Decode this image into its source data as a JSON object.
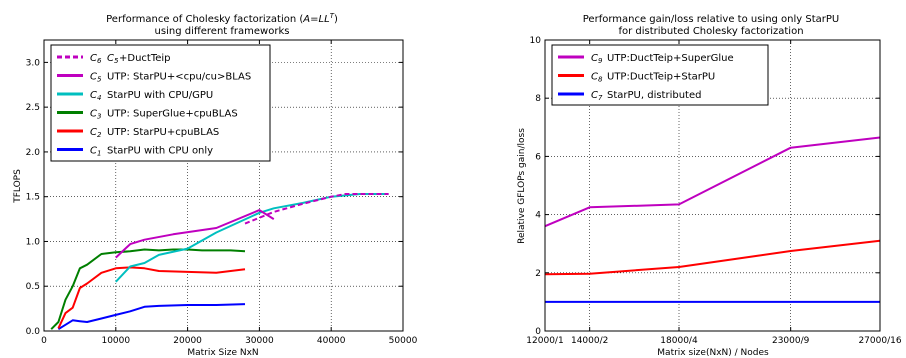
{
  "chart_data": [
    {
      "type": "line",
      "title": "Performance of Cholesky factorization (A=LL^T)",
      "title_parts": {
        "prefix": "Performance of Cholesky factorization (",
        "a": "A",
        "eq": "=",
        "ll": "LL",
        "sup": "T",
        "close": ")"
      },
      "subtitle": "using different frameworks",
      "xlabel": "Matrix Size NxN",
      "ylabel": "TFLOPS",
      "xlim": [
        0,
        50000
      ],
      "ylim": [
        0,
        3.25
      ],
      "xticks": [
        0,
        10000,
        20000,
        30000,
        40000,
        50000
      ],
      "xtick_labels": [
        "0",
        "10000",
        "20000",
        "30000",
        "40000",
        "50000"
      ],
      "yticks": [
        0.0,
        0.5,
        1.0,
        1.5,
        2.0,
        2.5,
        3.0
      ],
      "ytick_labels": [
        "0.0",
        "0.5",
        "1.0",
        "1.5",
        "2.0",
        "2.5",
        "3.0"
      ],
      "legend_position": "upper-left",
      "series": [
        {
          "sym": "C",
          "sub": "6",
          "name": "C5+DuctTeip",
          "name_parts": {
            "sym": "C",
            "sub": "5",
            "text": "+DuctTeip"
          },
          "color": "#bf00bf",
          "dashed": true,
          "x": [
            28000,
            32000,
            36000,
            40000,
            42000,
            44000,
            48000
          ],
          "y": [
            1.2,
            1.33,
            1.42,
            1.5,
            1.53,
            1.53,
            1.53
          ]
        },
        {
          "sym": "C",
          "sub": "5",
          "name": "UTP: StarPU+<cpu/cu>BLAS",
          "color": "#bf00bf",
          "dashed": false,
          "x": [
            10000,
            12000,
            14000,
            18000,
            24000,
            30000,
            32000
          ],
          "y": [
            0.82,
            0.97,
            1.02,
            1.08,
            1.15,
            1.35,
            1.25
          ]
        },
        {
          "sym": "C",
          "sub": "4",
          "name": "StarPU with CPU/GPU",
          "color": "#00bfbf",
          "dashed": false,
          "x": [
            10000,
            12000,
            14000,
            16000,
            20000,
            24000,
            30000,
            32000,
            36000,
            40000,
            44000,
            48000
          ],
          "y": [
            0.55,
            0.72,
            0.76,
            0.85,
            0.92,
            1.1,
            1.32,
            1.37,
            1.43,
            1.5,
            1.53,
            1.53
          ]
        },
        {
          "sym": "C",
          "sub": "3",
          "name": "UTP: SuperGlue+cpuBLAS",
          "color": "#007f00",
          "dashed": false,
          "x": [
            1000,
            2000,
            3000,
            4000,
            5000,
            6000,
            8000,
            10000,
            12000,
            14000,
            16000,
            18000,
            20000,
            22000,
            24000,
            26000,
            28000
          ],
          "y": [
            0.02,
            0.1,
            0.35,
            0.5,
            0.7,
            0.74,
            0.86,
            0.88,
            0.89,
            0.91,
            0.9,
            0.91,
            0.91,
            0.9,
            0.9,
            0.9,
            0.89
          ]
        },
        {
          "sym": "C",
          "sub": "2",
          "name": "UTP: StarPU+cpuBLAS",
          "color": "#ff0000",
          "dashed": false,
          "x": [
            2000,
            3000,
            4000,
            5000,
            6000,
            8000,
            10000,
            12000,
            14000,
            16000,
            20000,
            24000,
            28000
          ],
          "y": [
            0.03,
            0.2,
            0.26,
            0.48,
            0.53,
            0.65,
            0.7,
            0.71,
            0.7,
            0.67,
            0.66,
            0.65,
            0.69
          ]
        },
        {
          "sym": "C",
          "sub": "1",
          "name": "StarPU with CPU only",
          "color": "#0000ff",
          "dashed": false,
          "x": [
            2000,
            4000,
            5000,
            6000,
            8000,
            10000,
            12000,
            14000,
            16000,
            20000,
            24000,
            28000
          ],
          "y": [
            0.02,
            0.12,
            0.11,
            0.1,
            0.14,
            0.18,
            0.22,
            0.27,
            0.28,
            0.29,
            0.29,
            0.3
          ]
        }
      ]
    },
    {
      "type": "line",
      "title": "Performance gain/loss relative to using only StarPU",
      "subtitle": "for distributed Cholesky factorization",
      "xlabel": "Matrix size(NxN) / Nodes",
      "ylabel": "Relative GFLOPs gain/loss",
      "categories": [
        "12000/1",
        "14000/2",
        "18000/4",
        "23000/9",
        "27000/16"
      ],
      "x": [
        12000,
        14000,
        18000,
        23000,
        27000
      ],
      "xlim": [
        12000,
        27000
      ],
      "ylim": [
        0,
        10
      ],
      "yticks": [
        0,
        2,
        4,
        6,
        8,
        10
      ],
      "ytick_labels": [
        "0",
        "2",
        "4",
        "6",
        "8",
        "10"
      ],
      "legend_position": "upper-left",
      "series": [
        {
          "sym": "C",
          "sub": "9",
          "name": "UTP:DuctTeip+SuperGlue",
          "color": "#bf00bf",
          "values": [
            3.6,
            4.25,
            4.35,
            6.3,
            6.65
          ]
        },
        {
          "sym": "C",
          "sub": "8",
          "name": "UTP:DuctTeip+StarPU",
          "color": "#ff0000",
          "values": [
            1.95,
            1.97,
            2.2,
            2.75,
            3.1
          ]
        },
        {
          "sym": "C",
          "sub": "7",
          "name": "StarPU, distributed",
          "color": "#0000ff",
          "values": [
            1.0,
            1.0,
            1.0,
            1.0,
            1.0
          ]
        }
      ]
    }
  ]
}
